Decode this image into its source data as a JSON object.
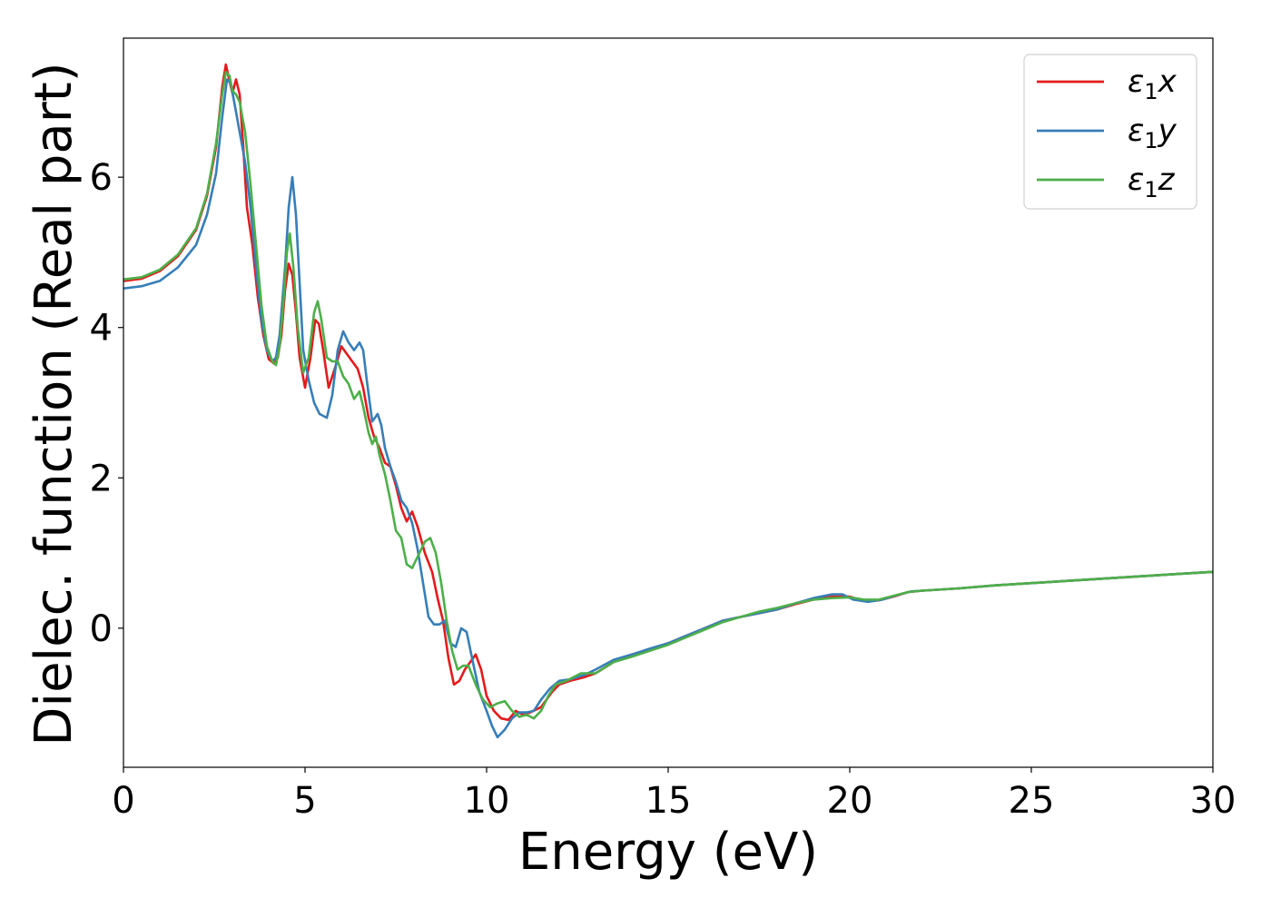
{
  "chart_data": {
    "type": "line",
    "xlabel": "Energy (eV)",
    "ylabel": "Dielec. function (Real part)",
    "xlim": [
      0,
      30
    ],
    "ylim": [
      -1.85,
      7.85
    ],
    "xticks": [
      0,
      5,
      10,
      15,
      20,
      25,
      30
    ],
    "yticks": [
      0,
      2,
      4,
      6
    ],
    "legend_position": "top-right",
    "grid": false,
    "series": [
      {
        "name": "ε₁x",
        "legend_base": "ε",
        "legend_sub": "1",
        "legend_var": "x",
        "color": "#e41a1c",
        "points": [
          [
            0,
            4.62
          ],
          [
            0.5,
            4.65
          ],
          [
            1,
            4.75
          ],
          [
            1.5,
            4.95
          ],
          [
            2,
            5.3
          ],
          [
            2.3,
            5.75
          ],
          [
            2.55,
            6.4
          ],
          [
            2.72,
            7.2
          ],
          [
            2.82,
            7.5
          ],
          [
            2.92,
            7.28
          ],
          [
            3.0,
            7.12
          ],
          [
            3.1,
            7.3
          ],
          [
            3.2,
            7.1
          ],
          [
            3.3,
            6.4
          ],
          [
            3.4,
            5.6
          ],
          [
            3.55,
            5.1
          ],
          [
            3.7,
            4.4
          ],
          [
            3.85,
            3.9
          ],
          [
            4.0,
            3.58
          ],
          [
            4.15,
            3.52
          ],
          [
            4.25,
            3.6
          ],
          [
            4.35,
            3.9
          ],
          [
            4.45,
            4.5
          ],
          [
            4.55,
            4.85
          ],
          [
            4.65,
            4.7
          ],
          [
            4.75,
            4.2
          ],
          [
            4.85,
            3.6
          ],
          [
            5.0,
            3.2
          ],
          [
            5.15,
            3.6
          ],
          [
            5.28,
            4.1
          ],
          [
            5.38,
            4.05
          ],
          [
            5.5,
            3.7
          ],
          [
            5.65,
            3.2
          ],
          [
            5.85,
            3.5
          ],
          [
            6.0,
            3.75
          ],
          [
            6.15,
            3.65
          ],
          [
            6.3,
            3.55
          ],
          [
            6.45,
            3.45
          ],
          [
            6.6,
            3.2
          ],
          [
            6.75,
            2.8
          ],
          [
            6.9,
            2.55
          ],
          [
            7.05,
            2.4
          ],
          [
            7.2,
            2.2
          ],
          [
            7.35,
            2.15
          ],
          [
            7.5,
            1.9
          ],
          [
            7.65,
            1.6
          ],
          [
            7.8,
            1.42
          ],
          [
            7.95,
            1.55
          ],
          [
            8.1,
            1.35
          ],
          [
            8.3,
            1.0
          ],
          [
            8.5,
            0.75
          ],
          [
            8.65,
            0.4
          ],
          [
            8.8,
            0.1
          ],
          [
            8.95,
            -0.4
          ],
          [
            9.1,
            -0.75
          ],
          [
            9.25,
            -0.7
          ],
          [
            9.4,
            -0.55
          ],
          [
            9.55,
            -0.45
          ],
          [
            9.7,
            -0.35
          ],
          [
            9.85,
            -0.55
          ],
          [
            10.0,
            -0.9
          ],
          [
            10.2,
            -1.1
          ],
          [
            10.4,
            -1.2
          ],
          [
            10.6,
            -1.22
          ],
          [
            10.8,
            -1.1
          ],
          [
            11.0,
            -1.15
          ],
          [
            11.2,
            -1.12
          ],
          [
            11.5,
            -1.05
          ],
          [
            11.8,
            -0.85
          ],
          [
            12.0,
            -0.75
          ],
          [
            12.3,
            -0.7
          ],
          [
            12.7,
            -0.65
          ],
          [
            13.0,
            -0.6
          ],
          [
            13.5,
            -0.45
          ],
          [
            14.0,
            -0.35
          ],
          [
            14.5,
            -0.28
          ],
          [
            15.0,
            -0.2
          ],
          [
            15.5,
            -0.1
          ],
          [
            16.0,
            0.0
          ],
          [
            16.5,
            0.1
          ],
          [
            17.0,
            0.15
          ],
          [
            17.5,
            0.2
          ],
          [
            18.0,
            0.25
          ],
          [
            18.5,
            0.32
          ],
          [
            19.0,
            0.38
          ],
          [
            19.5,
            0.42
          ],
          [
            20.0,
            0.42
          ],
          [
            20.4,
            0.36
          ],
          [
            20.8,
            0.37
          ],
          [
            21.2,
            0.42
          ],
          [
            21.6,
            0.48
          ],
          [
            22.0,
            0.5
          ],
          [
            23,
            0.53
          ],
          [
            24,
            0.57
          ],
          [
            25,
            0.6
          ],
          [
            26,
            0.63
          ],
          [
            27,
            0.66
          ],
          [
            28,
            0.69
          ],
          [
            29,
            0.72
          ],
          [
            30,
            0.75
          ]
        ]
      },
      {
        "name": "ε₁y",
        "legend_base": "ε",
        "legend_sub": "1",
        "legend_var": "y",
        "color": "#377eb8",
        "points": [
          [
            0,
            4.52
          ],
          [
            0.5,
            4.55
          ],
          [
            1,
            4.62
          ],
          [
            1.5,
            4.8
          ],
          [
            2,
            5.1
          ],
          [
            2.3,
            5.5
          ],
          [
            2.55,
            6.05
          ],
          [
            2.72,
            6.8
          ],
          [
            2.85,
            7.3
          ],
          [
            2.95,
            7.25
          ],
          [
            3.05,
            7.0
          ],
          [
            3.2,
            6.6
          ],
          [
            3.35,
            6.2
          ],
          [
            3.5,
            5.6
          ],
          [
            3.65,
            4.8
          ],
          [
            3.8,
            4.1
          ],
          [
            3.95,
            3.7
          ],
          [
            4.1,
            3.55
          ],
          [
            4.2,
            3.6
          ],
          [
            4.3,
            3.9
          ],
          [
            4.45,
            4.8
          ],
          [
            4.55,
            5.6
          ],
          [
            4.65,
            6.0
          ],
          [
            4.75,
            5.5
          ],
          [
            4.85,
            4.6
          ],
          [
            4.95,
            3.7
          ],
          [
            5.1,
            3.3
          ],
          [
            5.25,
            3.0
          ],
          [
            5.4,
            2.85
          ],
          [
            5.6,
            2.8
          ],
          [
            5.75,
            3.1
          ],
          [
            5.9,
            3.7
          ],
          [
            6.05,
            3.95
          ],
          [
            6.2,
            3.8
          ],
          [
            6.35,
            3.7
          ],
          [
            6.5,
            3.8
          ],
          [
            6.6,
            3.7
          ],
          [
            6.7,
            3.3
          ],
          [
            6.85,
            2.75
          ],
          [
            7.0,
            2.85
          ],
          [
            7.1,
            2.7
          ],
          [
            7.2,
            2.4
          ],
          [
            7.35,
            2.15
          ],
          [
            7.5,
            1.95
          ],
          [
            7.65,
            1.7
          ],
          [
            7.8,
            1.6
          ],
          [
            7.95,
            1.4
          ],
          [
            8.1,
            1.05
          ],
          [
            8.25,
            0.6
          ],
          [
            8.4,
            0.15
          ],
          [
            8.55,
            0.05
          ],
          [
            8.7,
            0.05
          ],
          [
            8.85,
            0.1
          ],
          [
            9.0,
            -0.2
          ],
          [
            9.15,
            -0.25
          ],
          [
            9.3,
            0.0
          ],
          [
            9.45,
            -0.05
          ],
          [
            9.6,
            -0.4
          ],
          [
            9.8,
            -0.85
          ],
          [
            10.0,
            -1.1
          ],
          [
            10.15,
            -1.3
          ],
          [
            10.3,
            -1.45
          ],
          [
            10.5,
            -1.35
          ],
          [
            10.7,
            -1.2
          ],
          [
            10.9,
            -1.12
          ],
          [
            11.1,
            -1.12
          ],
          [
            11.3,
            -1.1
          ],
          [
            11.5,
            -0.95
          ],
          [
            11.75,
            -0.8
          ],
          [
            12.0,
            -0.7
          ],
          [
            12.3,
            -0.68
          ],
          [
            12.7,
            -0.62
          ],
          [
            13.0,
            -0.55
          ],
          [
            13.5,
            -0.42
          ],
          [
            14.0,
            -0.35
          ],
          [
            14.5,
            -0.27
          ],
          [
            15.0,
            -0.2
          ],
          [
            15.5,
            -0.1
          ],
          [
            16.0,
            0.0
          ],
          [
            16.5,
            0.1
          ],
          [
            17.0,
            0.15
          ],
          [
            17.5,
            0.2
          ],
          [
            18.0,
            0.25
          ],
          [
            18.5,
            0.33
          ],
          [
            19.0,
            0.4
          ],
          [
            19.5,
            0.45
          ],
          [
            19.8,
            0.45
          ],
          [
            20.1,
            0.38
          ],
          [
            20.5,
            0.35
          ],
          [
            20.9,
            0.38
          ],
          [
            21.3,
            0.44
          ],
          [
            21.7,
            0.49
          ],
          [
            22.0,
            0.5
          ],
          [
            23,
            0.53
          ],
          [
            24,
            0.57
          ],
          [
            25,
            0.6
          ],
          [
            26,
            0.63
          ],
          [
            27,
            0.66
          ],
          [
            28,
            0.69
          ],
          [
            29,
            0.72
          ],
          [
            30,
            0.75
          ]
        ]
      },
      {
        "name": "ε₁z",
        "legend_base": "ε",
        "legend_sub": "1",
        "legend_var": "z",
        "color": "#4daf4a",
        "points": [
          [
            0,
            4.64
          ],
          [
            0.5,
            4.67
          ],
          [
            1,
            4.77
          ],
          [
            1.5,
            4.97
          ],
          [
            2,
            5.32
          ],
          [
            2.3,
            5.78
          ],
          [
            2.55,
            6.45
          ],
          [
            2.72,
            7.1
          ],
          [
            2.82,
            7.4
          ],
          [
            2.92,
            7.35
          ],
          [
            3.0,
            7.15
          ],
          [
            3.1,
            7.1
          ],
          [
            3.2,
            7.0
          ],
          [
            3.35,
            6.6
          ],
          [
            3.5,
            5.9
          ],
          [
            3.65,
            5.1
          ],
          [
            3.8,
            4.3
          ],
          [
            3.95,
            3.75
          ],
          [
            4.1,
            3.55
          ],
          [
            4.2,
            3.5
          ],
          [
            4.3,
            3.75
          ],
          [
            4.4,
            4.3
          ],
          [
            4.5,
            5.0
          ],
          [
            4.58,
            5.25
          ],
          [
            4.68,
            4.8
          ],
          [
            4.8,
            4.0
          ],
          [
            4.95,
            3.4
          ],
          [
            5.1,
            3.6
          ],
          [
            5.25,
            4.2
          ],
          [
            5.35,
            4.35
          ],
          [
            5.45,
            4.1
          ],
          [
            5.6,
            3.6
          ],
          [
            5.75,
            3.55
          ],
          [
            5.9,
            3.55
          ],
          [
            6.05,
            3.35
          ],
          [
            6.2,
            3.25
          ],
          [
            6.35,
            3.05
          ],
          [
            6.5,
            3.15
          ],
          [
            6.6,
            2.95
          ],
          [
            6.75,
            2.6
          ],
          [
            6.85,
            2.45
          ],
          [
            6.95,
            2.55
          ],
          [
            7.05,
            2.3
          ],
          [
            7.2,
            2.05
          ],
          [
            7.35,
            1.7
          ],
          [
            7.5,
            1.3
          ],
          [
            7.65,
            1.2
          ],
          [
            7.8,
            0.85
          ],
          [
            7.95,
            0.8
          ],
          [
            8.1,
            0.95
          ],
          [
            8.3,
            1.15
          ],
          [
            8.45,
            1.2
          ],
          [
            8.6,
            1.0
          ],
          [
            8.75,
            0.6
          ],
          [
            8.9,
            0.1
          ],
          [
            9.05,
            -0.3
          ],
          [
            9.2,
            -0.55
          ],
          [
            9.35,
            -0.5
          ],
          [
            9.5,
            -0.5
          ],
          [
            9.7,
            -0.75
          ],
          [
            9.9,
            -0.95
          ],
          [
            10.1,
            -1.05
          ],
          [
            10.3,
            -1.0
          ],
          [
            10.5,
            -0.97
          ],
          [
            10.7,
            -1.1
          ],
          [
            10.9,
            -1.18
          ],
          [
            11.1,
            -1.15
          ],
          [
            11.3,
            -1.2
          ],
          [
            11.5,
            -1.1
          ],
          [
            11.7,
            -0.9
          ],
          [
            11.9,
            -0.75
          ],
          [
            12.2,
            -0.7
          ],
          [
            12.6,
            -0.6
          ],
          [
            13.0,
            -0.6
          ],
          [
            13.5,
            -0.45
          ],
          [
            14.0,
            -0.38
          ],
          [
            14.5,
            -0.3
          ],
          [
            15.0,
            -0.22
          ],
          [
            15.5,
            -0.12
          ],
          [
            16.0,
            -0.02
          ],
          [
            16.5,
            0.08
          ],
          [
            17.0,
            0.15
          ],
          [
            17.5,
            0.22
          ],
          [
            18.0,
            0.27
          ],
          [
            18.5,
            0.33
          ],
          [
            19.0,
            0.38
          ],
          [
            19.5,
            0.4
          ],
          [
            20.0,
            0.41
          ],
          [
            20.4,
            0.38
          ],
          [
            20.8,
            0.38
          ],
          [
            21.2,
            0.43
          ],
          [
            21.6,
            0.48
          ],
          [
            22.0,
            0.5
          ],
          [
            23,
            0.53
          ],
          [
            24,
            0.57
          ],
          [
            25,
            0.6
          ],
          [
            26,
            0.63
          ],
          [
            27,
            0.66
          ],
          [
            28,
            0.69
          ],
          [
            29,
            0.72
          ],
          [
            30,
            0.75
          ]
        ]
      }
    ]
  }
}
